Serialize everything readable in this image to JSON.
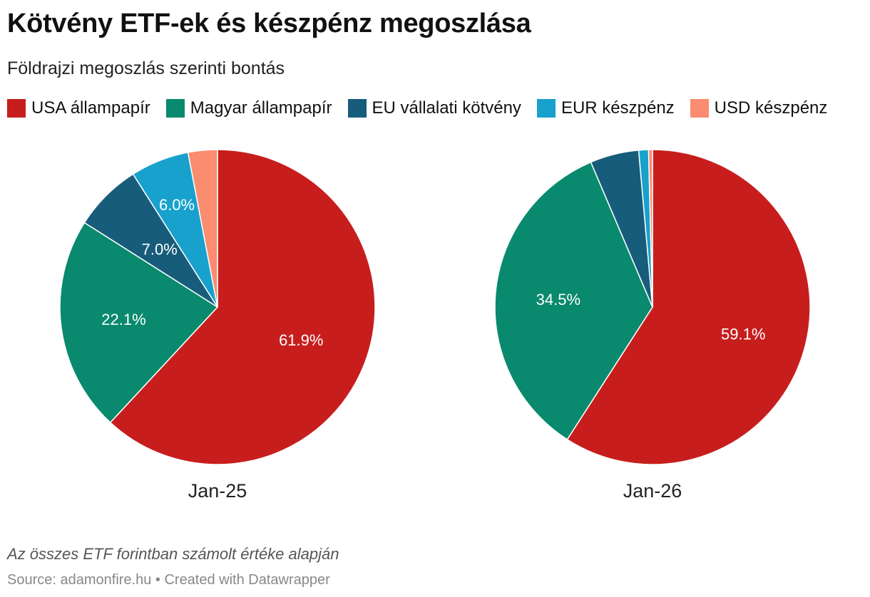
{
  "title": "Kötvény ETF-ek és készpénz megoszlása",
  "subtitle": "Földrajzi megoszlás szerinti bontás",
  "legend": [
    {
      "label": "USA állampapír",
      "color": "#c71e1d"
    },
    {
      "label": "Magyar állampapír",
      "color": "#09896d"
    },
    {
      "label": "EU vállalati kötvény",
      "color": "#175d7b"
    },
    {
      "label": "EUR készpénz",
      "color": "#18a1cd"
    },
    {
      "label": "USD készpénz",
      "color": "#fa8c6f"
    }
  ],
  "chart_data": [
    {
      "type": "pie",
      "title": "Jan-25",
      "categories": [
        "USA állampapír",
        "Magyar állampapír",
        "EU vállalati kötvény",
        "EUR készpénz",
        "USD készpénz"
      ],
      "values": [
        61.9,
        22.1,
        7.0,
        6.0,
        3.0
      ],
      "labels": [
        "61.9%",
        "22.1%",
        "7.0%",
        "6.0%",
        ""
      ]
    },
    {
      "type": "pie",
      "title": "Jan-26",
      "categories": [
        "USA állampapír",
        "Magyar állampapír",
        "EU vállalati kötvény",
        "EUR készpénz",
        "USD készpénz"
      ],
      "values": [
        59.1,
        34.5,
        5.0,
        1.0,
        0.4
      ],
      "labels": [
        "59.1%",
        "34.5%",
        "",
        "",
        ""
      ]
    }
  ],
  "note": "Az összes ETF forintban számolt értéke alapján",
  "source": "Source: adamonfire.hu • Created with Datawrapper"
}
